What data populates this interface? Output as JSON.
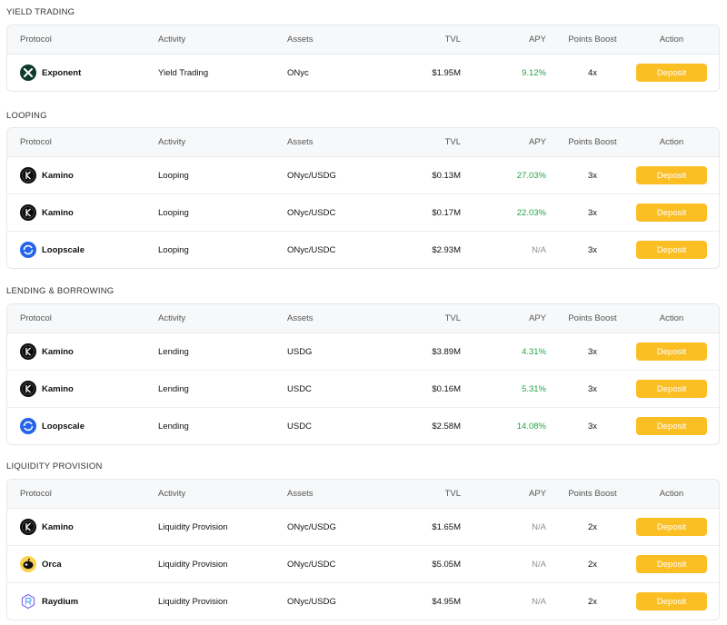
{
  "headers": {
    "protocol": "Protocol",
    "activity": "Activity",
    "assets": "Assets",
    "tvl": "TVL",
    "apy": "APY",
    "points": "Points Boost",
    "action": "Action"
  },
  "colors": {
    "accent_button": "#fbbf24",
    "apy_positive": "#22a447",
    "apy_na": "#8a8f96"
  },
  "sections": [
    {
      "title": "YIELD TRADING",
      "rows": [
        {
          "logo": "exponent-icon",
          "protocol": "Exponent",
          "activity": "Yield Trading",
          "assets": "ONyc",
          "tvl": "$1.95M",
          "apy": "9.12%",
          "points": "4x",
          "action": "Deposit"
        }
      ]
    },
    {
      "title": "LOOPING",
      "rows": [
        {
          "logo": "kamino-icon",
          "protocol": "Kamino",
          "activity": "Looping",
          "assets": "ONyc/USDG",
          "tvl": "$0.13M",
          "apy": "27.03%",
          "points": "3x",
          "action": "Deposit"
        },
        {
          "logo": "kamino-icon",
          "protocol": "Kamino",
          "activity": "Looping",
          "assets": "ONyc/USDC",
          "tvl": "$0.17M",
          "apy": "22.03%",
          "points": "3x",
          "action": "Deposit"
        },
        {
          "logo": "loopscale-icon",
          "protocol": "Loopscale",
          "activity": "Looping",
          "assets": "ONyc/USDC",
          "tvl": "$2.93M",
          "apy": "N/A",
          "points": "3x",
          "action": "Deposit"
        }
      ]
    },
    {
      "title": "LENDING & BORROWING",
      "rows": [
        {
          "logo": "kamino-icon",
          "protocol": "Kamino",
          "activity": "Lending",
          "assets": "USDG",
          "tvl": "$3.89M",
          "apy": "4.31%",
          "points": "3x",
          "action": "Deposit"
        },
        {
          "logo": "kamino-icon",
          "protocol": "Kamino",
          "activity": "Lending",
          "assets": "USDC",
          "tvl": "$0.16M",
          "apy": "5.31%",
          "points": "3x",
          "action": "Deposit"
        },
        {
          "logo": "loopscale-icon",
          "protocol": "Loopscale",
          "activity": "Lending",
          "assets": "USDC",
          "tvl": "$2.58M",
          "apy": "14.08%",
          "points": "3x",
          "action": "Deposit"
        }
      ]
    },
    {
      "title": "LIQUIDITY PROVISION",
      "rows": [
        {
          "logo": "kamino-icon",
          "protocol": "Kamino",
          "activity": "Liquidity Provision",
          "assets": "ONyc/USDG",
          "tvl": "$1.65M",
          "apy": "N/A",
          "points": "2x",
          "action": "Deposit"
        },
        {
          "logo": "orca-icon",
          "protocol": "Orca",
          "activity": "Liquidity Provision",
          "assets": "ONyc/USDC",
          "tvl": "$5.05M",
          "apy": "N/A",
          "points": "2x",
          "action": "Deposit"
        },
        {
          "logo": "raydium-icon",
          "protocol": "Raydium",
          "activity": "Liquidity Provision",
          "assets": "ONyc/USDG",
          "tvl": "$4.95M",
          "apy": "N/A",
          "points": "2x",
          "action": "Deposit"
        }
      ]
    }
  ]
}
